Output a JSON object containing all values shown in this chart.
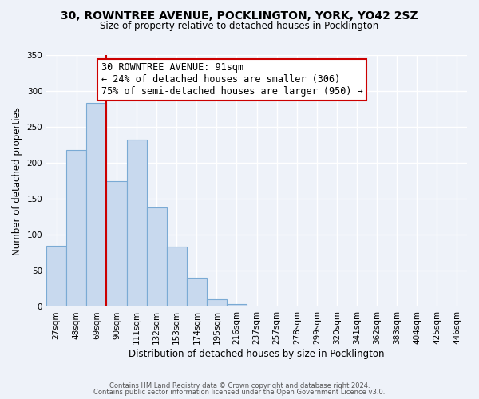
{
  "title": "30, ROWNTREE AVENUE, POCKLINGTON, YORK, YO42 2SZ",
  "subtitle": "Size of property relative to detached houses in Pocklington",
  "xlabel": "Distribution of detached houses by size in Pocklington",
  "ylabel": "Number of detached properties",
  "bar_labels": [
    "27sqm",
    "48sqm",
    "69sqm",
    "90sqm",
    "111sqm",
    "132sqm",
    "153sqm",
    "174sqm",
    "195sqm",
    "216sqm",
    "237sqm",
    "257sqm",
    "278sqm",
    "299sqm",
    "320sqm",
    "341sqm",
    "362sqm",
    "383sqm",
    "404sqm",
    "425sqm",
    "446sqm"
  ],
  "bar_values": [
    85,
    218,
    283,
    175,
    232,
    138,
    84,
    40,
    11,
    4,
    1,
    0,
    0,
    0,
    0,
    0,
    0,
    0,
    0,
    0,
    1
  ],
  "bar_color": "#c8d9ee",
  "bar_edge_color": "#7aaad4",
  "vline_x": 2.5,
  "vline_color": "#cc0000",
  "annotation_title": "30 ROWNTREE AVENUE: 91sqm",
  "annotation_line1": "← 24% of detached houses are smaller (306)",
  "annotation_line2": "75% of semi-detached houses are larger (950) →",
  "annotation_box_facecolor": "#ffffff",
  "annotation_box_edgecolor": "#cc0000",
  "ylim": [
    0,
    350
  ],
  "yticks": [
    0,
    50,
    100,
    150,
    200,
    250,
    300,
    350
  ],
  "footer1": "Contains HM Land Registry data © Crown copyright and database right 2024.",
  "footer2": "Contains public sector information licensed under the Open Government Licence v3.0.",
  "bg_color": "#eef2f9",
  "grid_color": "#ffffff",
  "title_fontsize": 10,
  "subtitle_fontsize": 8.5,
  "ylabel_fontsize": 8.5,
  "xlabel_fontsize": 8.5,
  "tick_fontsize": 7.5,
  "annot_fontsize": 8.5,
  "footer_fontsize": 6.0
}
